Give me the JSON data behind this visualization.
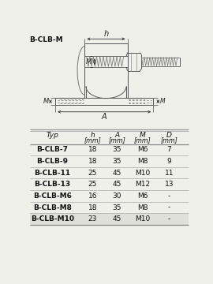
{
  "title": "B-CLB-M",
  "bg_color": "#f0f0eb",
  "table_rows": [
    [
      "B-CLB-7",
      "18",
      "35",
      "M6",
      "7"
    ],
    [
      "B-CLB-9",
      "18",
      "35",
      "M8",
      "9"
    ],
    [
      "B-CLB-11",
      "25",
      "45",
      "M10",
      "11"
    ],
    [
      "B-CLB-13",
      "25",
      "45",
      "M12",
      "13"
    ],
    [
      "B-CLB-M6",
      "16",
      "30",
      "M6",
      "-"
    ],
    [
      "B-CLB-M8",
      "18",
      "35",
      "M8",
      "-"
    ],
    [
      "B-CLB-M10",
      "23",
      "45",
      "M10",
      "-"
    ]
  ]
}
